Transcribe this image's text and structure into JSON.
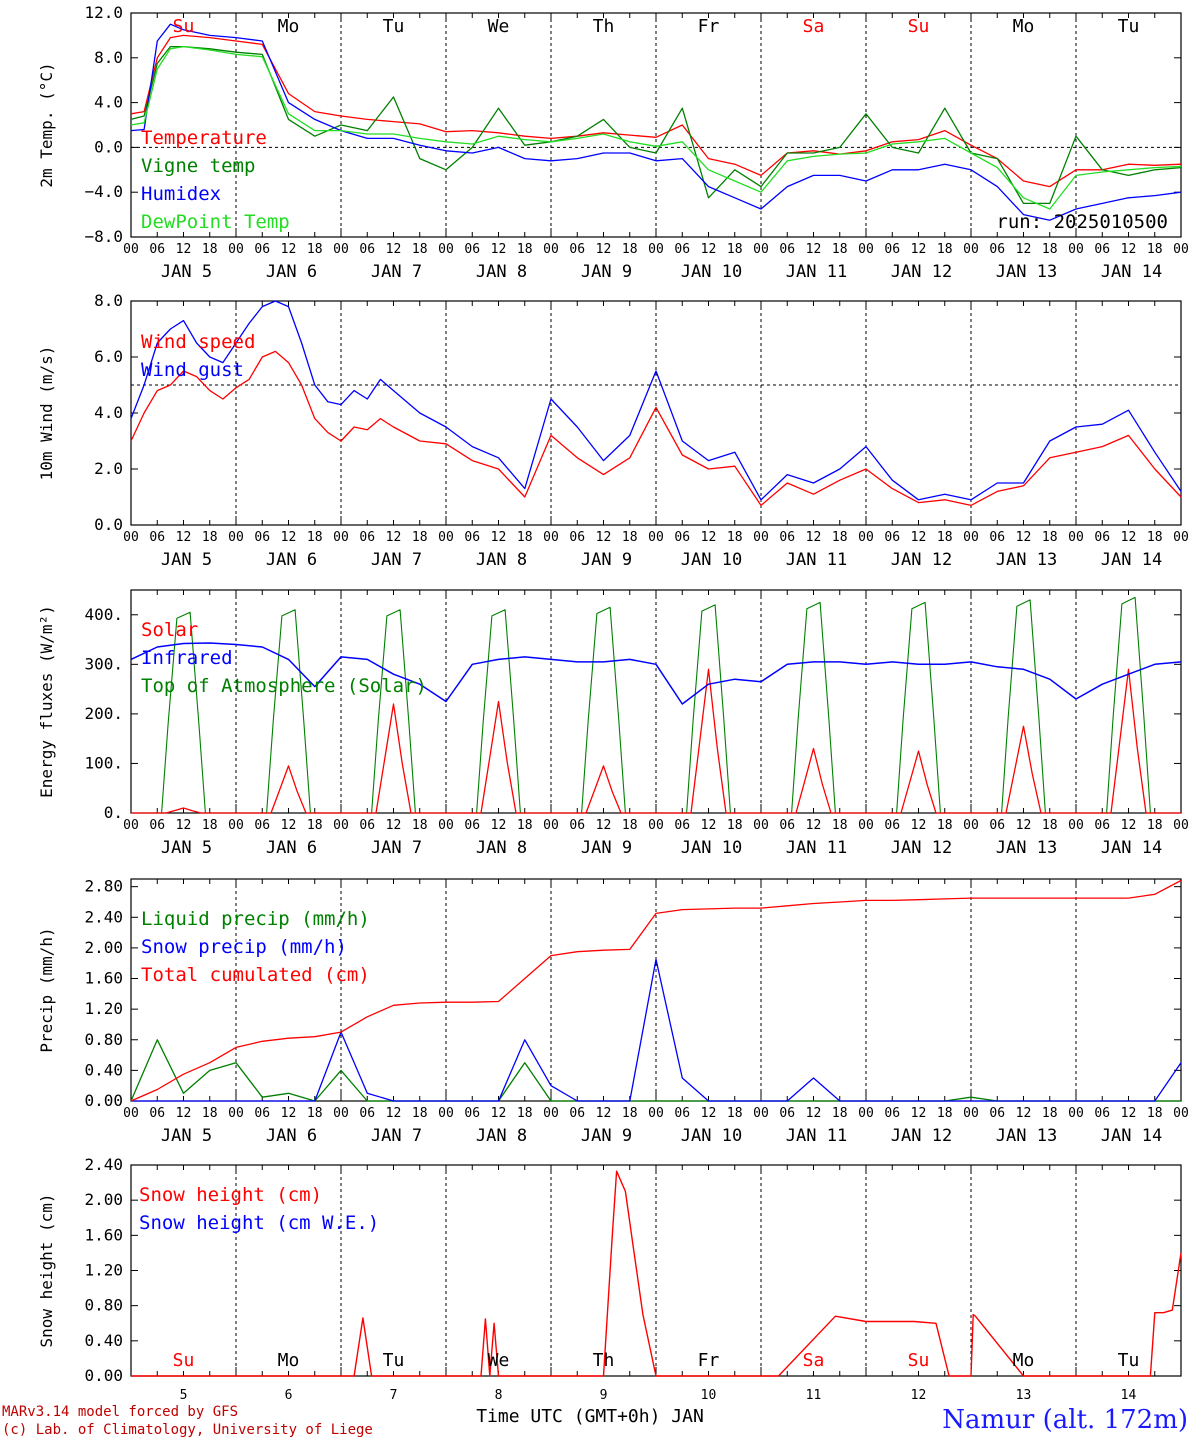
{
  "colors": {
    "red": "#ff0000",
    "green": "#008000",
    "blue": "#0000ff",
    "lime": "#22dd22",
    "black": "#000000"
  },
  "xaxis": {
    "hour_ticks": [
      "00",
      "06",
      "12",
      "18"
    ],
    "final_tick": "00",
    "dates": [
      "JAN 5",
      "JAN 6",
      "JAN 7",
      "JAN 8",
      "JAN 9",
      "JAN 10",
      "JAN 11",
      "JAN 12",
      "JAN 13",
      "JAN 14"
    ],
    "weekdays": [
      "Su",
      "Mo",
      "Tu",
      "We",
      "Th",
      "Fr",
      "Sa",
      "Su",
      "Mo",
      "Tu"
    ],
    "weekday_colors": [
      "#ff0000",
      "#000000",
      "#000000",
      "#000000",
      "#000000",
      "#000000",
      "#ff0000",
      "#ff0000",
      "#000000",
      "#000000"
    ],
    "bottom_days": [
      "5",
      "6",
      "7",
      "8",
      "9",
      "10",
      "11",
      "12",
      "13",
      "14"
    ],
    "bottom_title": "Time UTC (GMT+0h) JAN"
  },
  "footer": {
    "model_line": "MARv3.14 model forced by GFS",
    "credit_line": "(c) Lab. of Climatology, University of Liege",
    "station": "Namur (alt. 172m)"
  },
  "chart_data": [
    {
      "id": "temp",
      "type": "line",
      "ylabel": "2m Temp. (°C)",
      "ylim": [
        -8,
        12
      ],
      "yticks": [
        "12.0",
        "8.0",
        "4.0",
        "0.0",
        "−4.0",
        "−8.0"
      ],
      "ytick_values": [
        12,
        8,
        4,
        0,
        -4,
        -8
      ],
      "reference_line": 0,
      "annotation": "run: 2025010500",
      "x_hours_since_jan5_00utc": [
        0,
        3,
        6,
        9,
        12,
        18,
        24,
        30,
        36,
        42,
        48,
        54,
        60,
        66,
        72,
        78,
        84,
        90,
        96,
        102,
        108,
        114,
        120,
        126,
        132,
        138,
        144,
        150,
        156,
        162,
        168,
        174,
        180,
        186,
        192,
        198,
        204,
        210,
        216,
        222,
        228,
        234,
        240
      ],
      "series": [
        {
          "name": "Temperature",
          "color": "#ff0000",
          "values": [
            3,
            3.2,
            8,
            9.8,
            10,
            9.8,
            9.5,
            9.2,
            4.8,
            3.2,
            2.8,
            2.5,
            2.3,
            2.1,
            1.4,
            1.5,
            1.3,
            1,
            0.8,
            1,
            1.3,
            1.1,
            0.9,
            2,
            -1,
            -1.5,
            -2.5,
            -0.5,
            -0.3,
            -0.6,
            -0.3,
            0.5,
            0.7,
            1.5,
            0.2,
            -1,
            -3,
            -3.5,
            -2,
            -2,
            -1.5,
            -1.6,
            -1.5
          ]
        },
        {
          "name": "Vigne temp",
          "color": "#008000",
          "values": [
            2.5,
            2.8,
            7.5,
            9,
            9,
            8.8,
            8.5,
            8.3,
            2.5,
            1,
            2,
            1.5,
            4.5,
            -1,
            -2,
            0,
            3.5,
            0.2,
            0.5,
            1,
            2.5,
            0,
            -0.5,
            3.5,
            -4.5,
            -2,
            -3.5,
            -0.5,
            -0.5,
            0,
            3,
            0,
            -0.5,
            3.5,
            -0.5,
            -1,
            -5,
            -5,
            1,
            -2,
            -2.5,
            -2,
            -1.8
          ]
        },
        {
          "name": "Humidex",
          "color": "#0000ff",
          "values": [
            1.5,
            1.6,
            9.5,
            11,
            10.5,
            10,
            9.8,
            9.5,
            4,
            2.5,
            1.5,
            0.8,
            0.8,
            0.2,
            -0.3,
            -0.5,
            0,
            -1,
            -1.2,
            -1,
            -0.5,
            -0.5,
            -1.2,
            -1,
            -3.5,
            -4.5,
            -5.5,
            -3.5,
            -2.5,
            -2.5,
            -3,
            -2,
            -2,
            -1.5,
            -2,
            -3.5,
            -6,
            -6.5,
            -5.5,
            -5,
            -4.5,
            -4.3,
            -4
          ]
        },
        {
          "name": "DewPoint Temp",
          "color": "#22dd22",
          "values": [
            2,
            2.2,
            7,
            8.8,
            9,
            8.7,
            8.3,
            8.1,
            3,
            1.5,
            1.5,
            1.2,
            1.2,
            0.8,
            0.5,
            0.3,
            1,
            0.7,
            0.5,
            0.8,
            1.2,
            0.5,
            0.1,
            0.5,
            -2,
            -3,
            -4,
            -1.2,
            -0.8,
            -0.6,
            -0.5,
            0.3,
            0.5,
            0.8,
            -0.5,
            -1.8,
            -4.5,
            -5.5,
            -2.5,
            -2.2,
            -2,
            -1.8,
            -1.7
          ]
        }
      ]
    },
    {
      "id": "wind",
      "type": "line",
      "ylabel": "10m Wind (m/s)",
      "ylim": [
        0,
        8
      ],
      "yticks": [
        "8.0",
        "6.0",
        "4.0",
        "2.0",
        "0.0"
      ],
      "ytick_values": [
        8,
        6,
        4,
        2,
        0
      ],
      "reference_line": 5,
      "x_hours_since_jan5_00utc": [
        0,
        3,
        6,
        9,
        12,
        15,
        18,
        21,
        24,
        27,
        30,
        33,
        36,
        39,
        42,
        45,
        48,
        51,
        54,
        57,
        60,
        66,
        72,
        78,
        84,
        90,
        96,
        102,
        108,
        114,
        120,
        126,
        132,
        138,
        144,
        150,
        156,
        162,
        168,
        174,
        180,
        186,
        192,
        198,
        204,
        210,
        216,
        222,
        228,
        234,
        240
      ],
      "series": [
        {
          "name": "Wind speed",
          "color": "#ff0000",
          "values": [
            3,
            4,
            4.8,
            5,
            5.5,
            5.3,
            4.8,
            4.5,
            4.9,
            5.2,
            6,
            6.2,
            5.8,
            5,
            3.8,
            3.3,
            3,
            3.5,
            3.4,
            3.8,
            3.5,
            3.0,
            2.9,
            2.3,
            2.0,
            1.0,
            3.2,
            2.4,
            1.8,
            2.4,
            4.2,
            2.5,
            2.0,
            2.1,
            0.7,
            1.5,
            1.1,
            1.6,
            2.0,
            1.3,
            0.8,
            0.9,
            0.7,
            1.2,
            1.4,
            2.4,
            2.6,
            2.8,
            3.2,
            2.0,
            1.0
          ]
        },
        {
          "name": "Wind gust",
          "color": "#0000ff",
          "values": [
            3.8,
            5,
            6.5,
            7,
            7.3,
            6.5,
            6,
            5.8,
            6.5,
            7.2,
            7.8,
            8,
            7.8,
            6.5,
            5,
            4.4,
            4.3,
            4.8,
            4.5,
            5.2,
            4.8,
            4.0,
            3.5,
            2.8,
            2.4,
            1.3,
            4.5,
            3.5,
            2.3,
            3.2,
            5.5,
            3.0,
            2.3,
            2.6,
            0.9,
            1.8,
            1.5,
            2.0,
            2.8,
            1.6,
            0.9,
            1.1,
            0.9,
            1.5,
            1.5,
            3.0,
            3.5,
            3.6,
            4.1,
            2.6,
            1.2
          ]
        }
      ]
    },
    {
      "id": "energy",
      "type": "line",
      "ylabel": "Energy fluxes (W/m²)",
      "ylim": [
        0,
        450
      ],
      "yticks": [
        "400.",
        "300.",
        "200.",
        "100.",
        "0."
      ],
      "ytick_values": [
        400,
        300,
        200,
        100,
        0
      ],
      "solar_peaks_w_m2": [
        10,
        95,
        220,
        225,
        95,
        290,
        130,
        125,
        175,
        290
      ],
      "toa_solar_peaks_w_m2": [
        405,
        410,
        410,
        410,
        415,
        420,
        425,
        425,
        430,
        435
      ],
      "infrared_x_hours_since_jan5_00utc": [
        0,
        6,
        12,
        18,
        24,
        30,
        36,
        42,
        48,
        54,
        60,
        66,
        72,
        78,
        84,
        90,
        96,
        102,
        108,
        114,
        120,
        126,
        132,
        138,
        144,
        150,
        156,
        162,
        168,
        174,
        180,
        186,
        192,
        198,
        204,
        210,
        216,
        222,
        228,
        234,
        240
      ],
      "series": [
        {
          "name": "Solar",
          "color": "#ff0000",
          "note_values_are_daily_peaks": true
        },
        {
          "name": "Infrared",
          "color": "#0000ff",
          "values": [
            310,
            335,
            342,
            343,
            340,
            335,
            310,
            255,
            315,
            310,
            280,
            260,
            225,
            300,
            310,
            315,
            310,
            305,
            305,
            310,
            300,
            220,
            260,
            270,
            265,
            300,
            305,
            305,
            300,
            305,
            300,
            300,
            305,
            295,
            290,
            270,
            230,
            260,
            280,
            300,
            305
          ]
        },
        {
          "name": "Top of Atmosphere (Solar)",
          "color": "#008000",
          "note_values_are_daily_peaks": true
        }
      ]
    },
    {
      "id": "precip",
      "type": "line",
      "ylabel": "Precip (mm/h)",
      "ylim": [
        0,
        2.9
      ],
      "yticks": [
        "2.80",
        "2.40",
        "2.00",
        "1.60",
        "1.20",
        "0.80",
        "0.40",
        "0.00"
      ],
      "ytick_values": [
        2.8,
        2.4,
        2.0,
        1.6,
        1.2,
        0.8,
        0.4,
        0
      ],
      "x_hours_since_jan5_00utc": [
        0,
        6,
        12,
        18,
        24,
        30,
        36,
        42,
        48,
        54,
        60,
        66,
        72,
        78,
        84,
        90,
        96,
        102,
        108,
        114,
        120,
        126,
        132,
        138,
        144,
        150,
        156,
        162,
        168,
        174,
        180,
        186,
        192,
        198,
        204,
        210,
        216,
        222,
        228,
        234,
        240
      ],
      "series": [
        {
          "name": "Liquid precip (mm/h)",
          "color": "#008000",
          "values": [
            0,
            0.8,
            0.1,
            0.4,
            0.5,
            0.05,
            0.1,
            0,
            0.4,
            0,
            0,
            0,
            0,
            0,
            0,
            0.5,
            0,
            0,
            0,
            0,
            0,
            0,
            0,
            0,
            0,
            0,
            0,
            0,
            0,
            0,
            0,
            0,
            0.05,
            0,
            0,
            0,
            0,
            0,
            0,
            0,
            0
          ]
        },
        {
          "name": "Snow precip (mm/h)",
          "color": "#0000ff",
          "values": [
            0,
            0,
            0,
            0,
            0,
            0,
            0,
            0,
            0.9,
            0.1,
            0,
            0,
            0,
            0,
            0,
            0.8,
            0.2,
            0,
            0,
            0,
            1.85,
            0.3,
            0,
            0,
            0,
            0,
            0.3,
            0,
            0,
            0,
            0,
            0,
            0,
            0,
            0,
            0,
            0,
            0,
            0,
            0,
            0.5
          ]
        },
        {
          "name": "Total cumulated (cm)",
          "color": "#ff0000",
          "values": [
            0,
            0.15,
            0.35,
            0.5,
            0.7,
            0.78,
            0.82,
            0.84,
            0.9,
            1.1,
            1.25,
            1.28,
            1.29,
            1.29,
            1.3,
            1.6,
            1.9,
            1.95,
            1.97,
            1.98,
            2.45,
            2.5,
            2.51,
            2.52,
            2.52,
            2.55,
            2.58,
            2.6,
            2.62,
            2.62,
            2.63,
            2.64,
            2.65,
            2.65,
            2.65,
            2.65,
            2.65,
            2.65,
            2.65,
            2.7,
            2.88
          ]
        }
      ]
    },
    {
      "id": "snow",
      "type": "line",
      "ylabel": "Snow height (cm)",
      "ylim": [
        0,
        2.4
      ],
      "yticks": [
        "2.40",
        "2.00",
        "1.60",
        "1.20",
        "0.80",
        "0.40",
        "0.00"
      ],
      "ytick_values": [
        2.4,
        2.0,
        1.6,
        1.2,
        0.8,
        0.4,
        0
      ],
      "x_hours_since_jan5_00utc": [
        0,
        49,
        51,
        53,
        55,
        80,
        81,
        82,
        83,
        84,
        108,
        110,
        111,
        113,
        115,
        117,
        120,
        124,
        126,
        132,
        148,
        161,
        168,
        179,
        184,
        187,
        190,
        192,
        192.5,
        193,
        204,
        233,
        234,
        236,
        238,
        240
      ],
      "series": [
        {
          "name": "Snow height (cm)",
          "color": "#ff0000",
          "values": [
            0,
            0,
            0,
            0.66,
            0,
            0,
            0.65,
            0,
            0.6,
            0,
            0,
            1.6,
            2.33,
            2.1,
            1.4,
            0.7,
            0,
            0,
            0,
            0,
            0,
            0.68,
            0.62,
            0.62,
            0.6,
            0,
            0,
            0,
            0.7,
            0.68,
            0,
            0,
            0.72,
            0.72,
            0.75,
            1.4
          ]
        },
        {
          "name": "Snow height (cm W.E.)",
          "color": "#0000ff",
          "values": []
        }
      ]
    }
  ]
}
